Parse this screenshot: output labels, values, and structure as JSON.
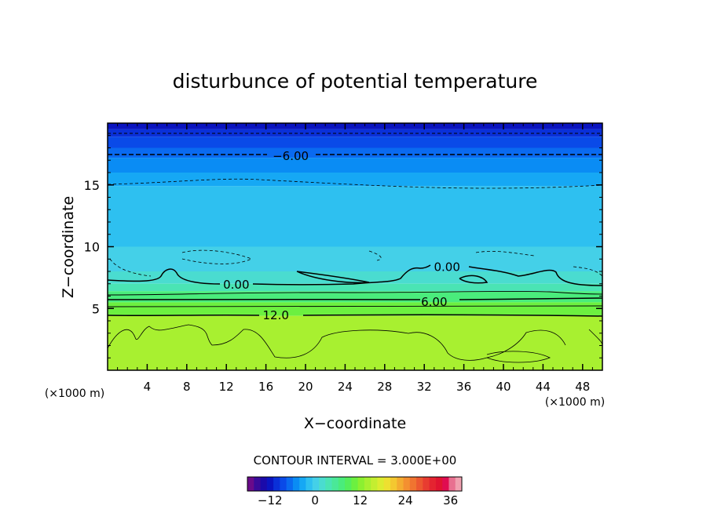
{
  "chart_data": {
    "type": "heatmap",
    "title": "disturbunce of potential temperature",
    "xlabel": "X−coordinate",
    "ylabel": "Z−coordinate",
    "x_unit": "(×1000 m)",
    "y_unit": "(×1000 m)",
    "xlim": [
      0,
      50
    ],
    "ylim": [
      0,
      20
    ],
    "x_ticks": [
      4,
      8,
      12,
      16,
      20,
      24,
      28,
      32,
      36,
      40,
      44,
      48
    ],
    "y_ticks": [
      5,
      10,
      15
    ],
    "contour_interval_text": "CONTOUR INTERVAL = 3.000E+00",
    "contour_labels": [
      {
        "text": "−6.00",
        "x": 18.5,
        "z": 17.4
      },
      {
        "text": "0.00",
        "x": 34.3,
        "z": 8.4
      },
      {
        "text": "0.00",
        "x": 13.0,
        "z": 7.0
      },
      {
        "text": "6.00",
        "x": 33.0,
        "z": 5.6
      },
      {
        "text": "12.0",
        "x": 17.0,
        "z": 4.5
      }
    ],
    "field_bands": [
      {
        "z0": 19.5,
        "z1": 20.0,
        "value": -12.5
      },
      {
        "z0": 18.9,
        "z1": 19.5,
        "value": -11.0
      },
      {
        "z0": 18.0,
        "z1": 18.9,
        "value": -9.0
      },
      {
        "z0": 17.2,
        "z1": 18.0,
        "value": -7.0
      },
      {
        "z0": 16.0,
        "z1": 17.2,
        "value": -5.0
      },
      {
        "z0": 14.9,
        "z1": 16.0,
        "value": -3.5
      },
      {
        "z0": 10.0,
        "z1": 14.9,
        "value": -2.0
      },
      {
        "z0": 8.0,
        "z1": 10.0,
        "value": -0.5
      },
      {
        "z0": 7.0,
        "z1": 8.0,
        "value": 1.5
      },
      {
        "z0": 6.4,
        "z1": 7.0,
        "value": 4.0
      },
      {
        "z0": 5.5,
        "z1": 6.4,
        "value": 6.5
      },
      {
        "z0": 4.4,
        "z1": 5.5,
        "value": 10.0
      },
      {
        "z0": 0.0,
        "z1": 4.4,
        "value": 13.5
      }
    ],
    "colorbar": {
      "range": [
        -18,
        39
      ],
      "ticks": [
        -12,
        0,
        12,
        24,
        36
      ],
      "tick_labels": [
        "−12",
        "0",
        "12",
        "24",
        "36"
      ],
      "colors": [
        "#6a0a8a",
        "#3a0a9a",
        "#1a0aaa",
        "#0a14c0",
        "#0a30d8",
        "#0a4ae8",
        "#0a6af0",
        "#0a8cf4",
        "#16a8f4",
        "#2ec0f0",
        "#44d0e8",
        "#4adcd0",
        "#4ae4b4",
        "#4ae898",
        "#4aec7c",
        "#54ee5c",
        "#6cf040",
        "#8cf030",
        "#a8f030",
        "#c4ee30",
        "#dcec30",
        "#eee030",
        "#f4c830",
        "#f4ac30",
        "#f49030",
        "#f07430",
        "#ec5830",
        "#e83c30",
        "#e42430",
        "#e01430",
        "#e00c50",
        "#e87090",
        "#f0a0b0"
      ]
    }
  }
}
